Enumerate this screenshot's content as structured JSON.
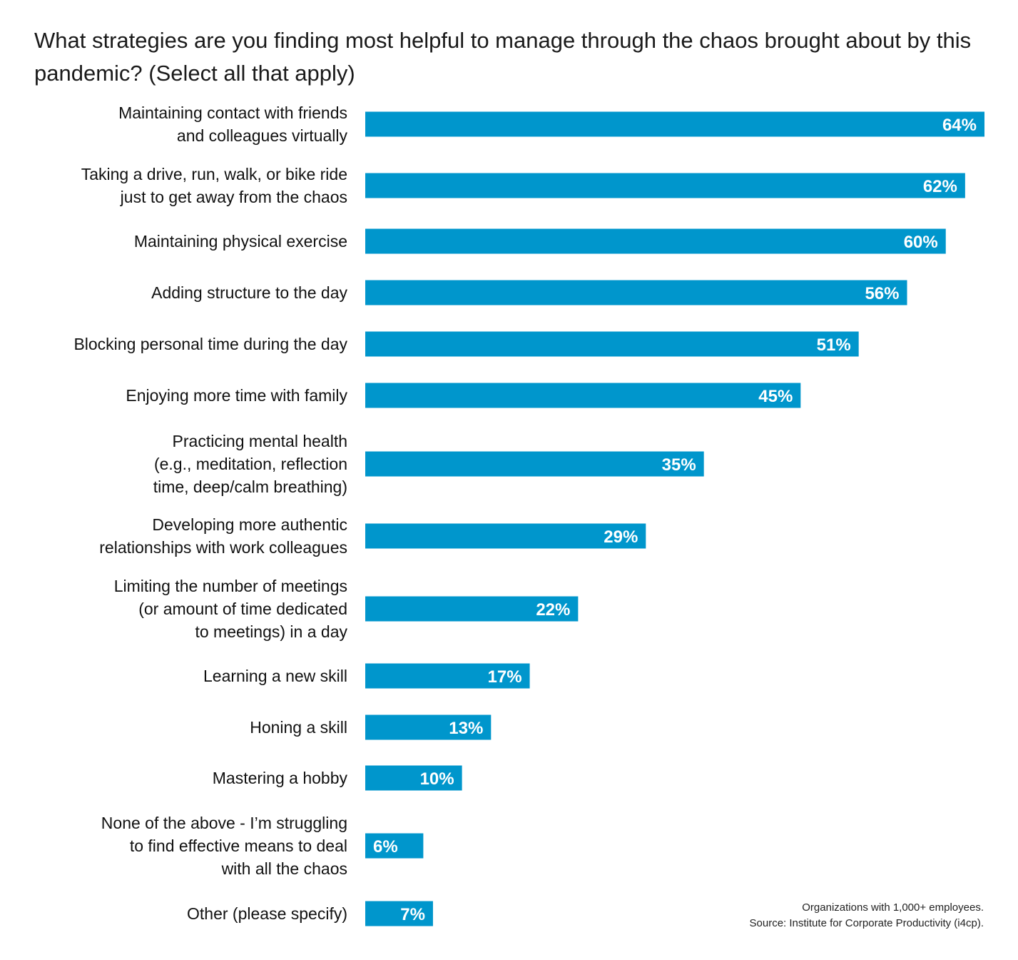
{
  "chart_data": {
    "type": "bar",
    "orientation": "horizontal",
    "title": "What strategies are you finding most helpful to manage through the chaos brought about by this pandemic? (Select all that apply)",
    "categories": [
      [
        "Maintaining contact with friends",
        "and colleagues virtually"
      ],
      [
        "Taking a drive, run, walk, or bike ride",
        "just to get away from the chaos"
      ],
      [
        "Maintaining physical exercise"
      ],
      [
        "Adding structure to the day"
      ],
      [
        "Blocking personal time during the day"
      ],
      [
        "Enjoying more time with family"
      ],
      [
        "Practicing mental health",
        "(e.g., meditation, reflection",
        "time, deep/calm breathing)"
      ],
      [
        "Developing more authentic",
        "relationships with work colleagues"
      ],
      [
        "Limiting the number of meetings",
        "(or amount of time dedicated",
        "to meetings) in a day"
      ],
      [
        "Learning a new skill"
      ],
      [
        "Honing a skill"
      ],
      [
        "Mastering a hobby"
      ],
      [
        "None of the above - I’m struggling",
        "to find effective means to deal",
        "with all the chaos"
      ],
      [
        "Other (please specify)"
      ]
    ],
    "values": [
      64,
      62,
      60,
      56,
      51,
      45,
      35,
      29,
      22,
      17,
      13,
      10,
      6,
      7
    ],
    "value_labels": [
      "64%",
      "62%",
      "60%",
      "56%",
      "51%",
      "45%",
      "35%",
      "29%",
      "22%",
      "17%",
      "13%",
      "10%",
      "6%",
      "7%"
    ],
    "unit": "%",
    "bar_color": "#0096cc",
    "value_label_color": "#ffffff",
    "grid": false,
    "legend": "none"
  },
  "footnote": {
    "line1": "Organizations with 1,000+ employees.",
    "line2": "Source: Institute for Corporate Productivity (i4cp)."
  }
}
